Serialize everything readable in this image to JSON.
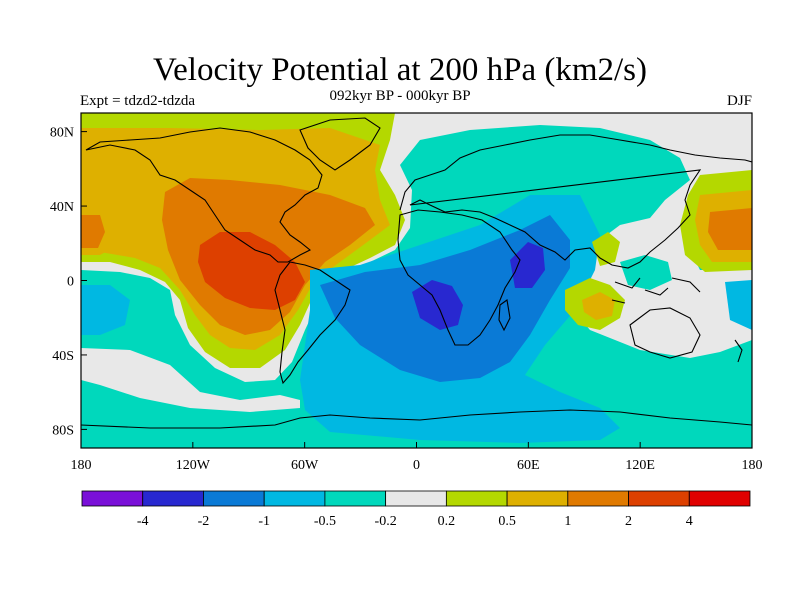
{
  "title": "Velocity Potential at 200 hPa (km2/s)",
  "subtitle": "092kyr BP - 000kyr BP",
  "left_label": "Expt = tdzd2-tdzda",
  "right_label": "DJF",
  "axes": {
    "x_ticks": [
      "180",
      "120W",
      "60W",
      "0",
      "60E",
      "120E",
      "180"
    ],
    "y_ticks": [
      "80N",
      "40N",
      "0",
      "40S",
      "80S"
    ],
    "lon_range": [
      -180,
      180
    ],
    "lat_range": [
      -90,
      90
    ]
  },
  "colorbar": {
    "colors": [
      "#7a10d8",
      "#2828d0",
      "#0a7ad6",
      "#00b8e2",
      "#00d8bc",
      "#e8e8e8",
      "#b4d800",
      "#deb000",
      "#e07a00",
      "#dd4000",
      "#e00000"
    ],
    "labels": [
      "-4",
      "-2",
      "-1",
      "-0.5",
      "-0.2",
      "0.2",
      "0.5",
      "1",
      "2",
      "4"
    ]
  }
}
